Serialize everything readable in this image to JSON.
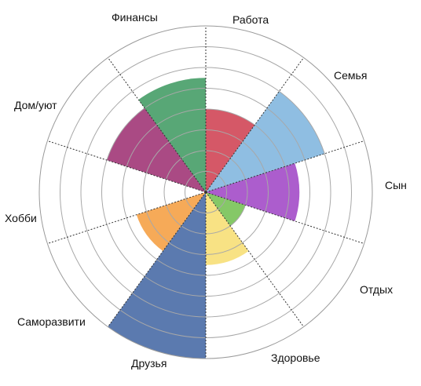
{
  "chart_data": {
    "type": "polar-area",
    "title": "",
    "rings": 8,
    "grid": true,
    "categories": [
      "Работа",
      "Семья",
      "Сын",
      "Отдых",
      "Здоровье",
      "Друзья",
      "Саморазвити",
      "Хобби",
      "Дом/уют",
      "Финансы"
    ],
    "values": [
      4,
      6,
      4.5,
      2,
      3.5,
      8,
      3.5,
      0,
      5,
      5.5
    ],
    "colors": [
      "#d14a5a",
      "#86b8e0",
      "#a54fc9",
      "#7bc35a",
      "#f7e07a",
      "#4d6fa8",
      "#f5a34a",
      "#cccccc",
      "#a33b7a",
      "#4aa06a"
    ]
  }
}
